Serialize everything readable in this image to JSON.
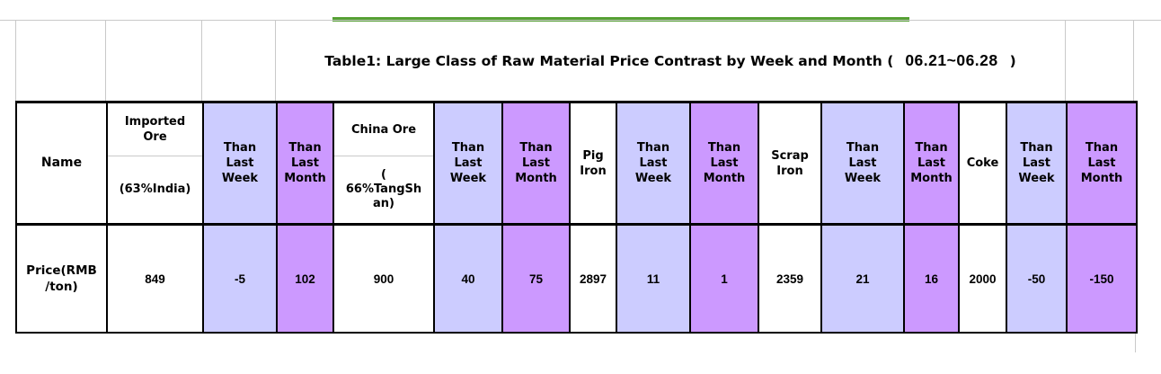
{
  "title": {
    "prefix": "Table1: Large Class of Raw Material Price Contrast by Week and Month (",
    "period": "06.21~06.28",
    "suffix": ")"
  },
  "table": {
    "columns": [
      {
        "id": "name",
        "header": "Name",
        "value": "Price(RMB\n/ton)"
      },
      {
        "id": "imported-ore",
        "header_top": "Imported\nOre",
        "header_bottom": "(63%India)",
        "value": "849"
      },
      {
        "id": "than-last-week-1",
        "header": "Than\nLast\nWeek",
        "value": "-5"
      },
      {
        "id": "than-last-month-1",
        "header": "Than\nLast\nMonth",
        "value": "102"
      },
      {
        "id": "china-ore",
        "header_top": "China Ore",
        "header_bottom": "(\n66%TangSh\nan)",
        "value": "900"
      },
      {
        "id": "than-last-week-2",
        "header": "Than\nLast\nWeek",
        "value": "40"
      },
      {
        "id": "than-last-month-2",
        "header": "Than\nLast\nMonth",
        "value": "75"
      },
      {
        "id": "pig-iron",
        "header": "Pig\nIron",
        "value": "2897"
      },
      {
        "id": "than-last-week-3",
        "header": "Than\nLast\nWeek",
        "value": "11"
      },
      {
        "id": "than-last-month-3",
        "header": "Than\nLast\nMonth",
        "value": "1"
      },
      {
        "id": "scrap-iron",
        "header": "Scrap\nIron",
        "value": "2359"
      },
      {
        "id": "than-last-week-4",
        "header": "Than\nLast\nWeek",
        "value": "21"
      },
      {
        "id": "than-last-month-4",
        "header": "Than\nLast\nMonth",
        "value": "16"
      },
      {
        "id": "coke",
        "header": "Coke",
        "value": "2000"
      },
      {
        "id": "than-last-week-5",
        "header": "Than\nLast\nWeek",
        "value": "-50"
      },
      {
        "id": "than-last-month-5",
        "header": "Than\nLast\nMonth",
        "value": "-150"
      }
    ]
  },
  "chart_data": {
    "type": "table",
    "title": "Table1: Large Class of Raw Material Price Contrast by Week and Month (06.21~06.28)",
    "row_label": "Price(RMB/ton)",
    "categories": [
      "Imported Ore (63%India)",
      "Than Last Week",
      "Than Last Month",
      "China Ore (66%TangShan)",
      "Than Last Week",
      "Than Last Month",
      "Pig Iron",
      "Than Last Week",
      "Than Last Month",
      "Scrap Iron",
      "Than Last Week",
      "Than Last Month",
      "Coke",
      "Than Last Week",
      "Than Last Month"
    ],
    "values": [
      849,
      -5,
      102,
      900,
      40,
      75,
      2897,
      11,
      1,
      2359,
      21,
      16,
      2000,
      -50,
      -150
    ],
    "legend_note": "lavender = change vs last week, purple = change vs last month"
  },
  "colors": {
    "lavender": "#ccccff",
    "purple": "#cc99ff",
    "green_line": "#55a033",
    "grid": "#c9c9c9",
    "border": "#000000"
  }
}
